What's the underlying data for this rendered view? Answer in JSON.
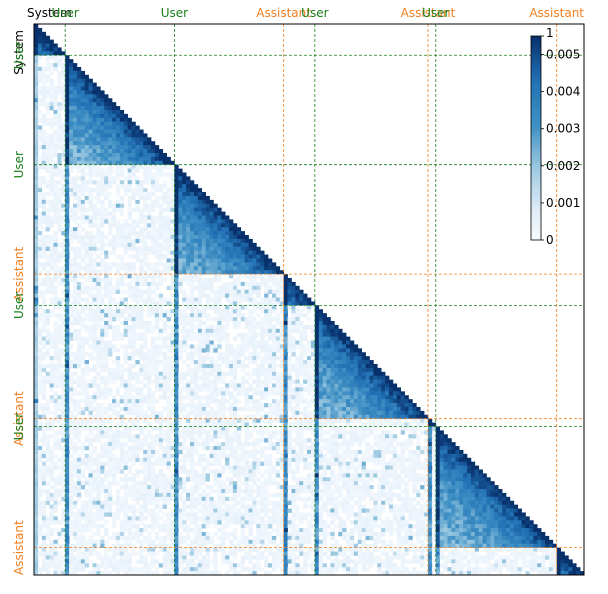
{
  "chart_data": {
    "type": "heatmap",
    "title": "",
    "subtitle": "",
    "description_label": "",
    "segments": [
      {
        "role": "System",
        "start": 0,
        "end": 8
      },
      {
        "role": "User",
        "start": 8,
        "end": 36
      },
      {
        "role": "User",
        "start": 36,
        "end": 64
      },
      {
        "role": "Assistant",
        "start": 64,
        "end": 72
      },
      {
        "role": "User",
        "start": 72,
        "end": 101
      },
      {
        "role": "Assistant",
        "start": 101,
        "end": 103
      },
      {
        "role": "User",
        "start": 103,
        "end": 134
      },
      {
        "role": "Assistant",
        "start": 134,
        "end": 141
      }
    ],
    "total_tokens": 141,
    "colorbar": {
      "ticks": [
        0,
        0.001,
        0.002,
        0.003,
        0.004,
        0.005
      ],
      "tick_labels": [
        "0",
        "0.001",
        "0.002",
        "0.003",
        "0.004",
        "0.005"
      ],
      "top_label": "1",
      "vmin": 0,
      "vmax": 0.0055
    },
    "colors": {
      "System": "#000000",
      "User": "#1a7f1a",
      "Assistant": "#f07f1f",
      "cmap_low": "#f7fbff",
      "cmap_high": "#08306b"
    }
  }
}
